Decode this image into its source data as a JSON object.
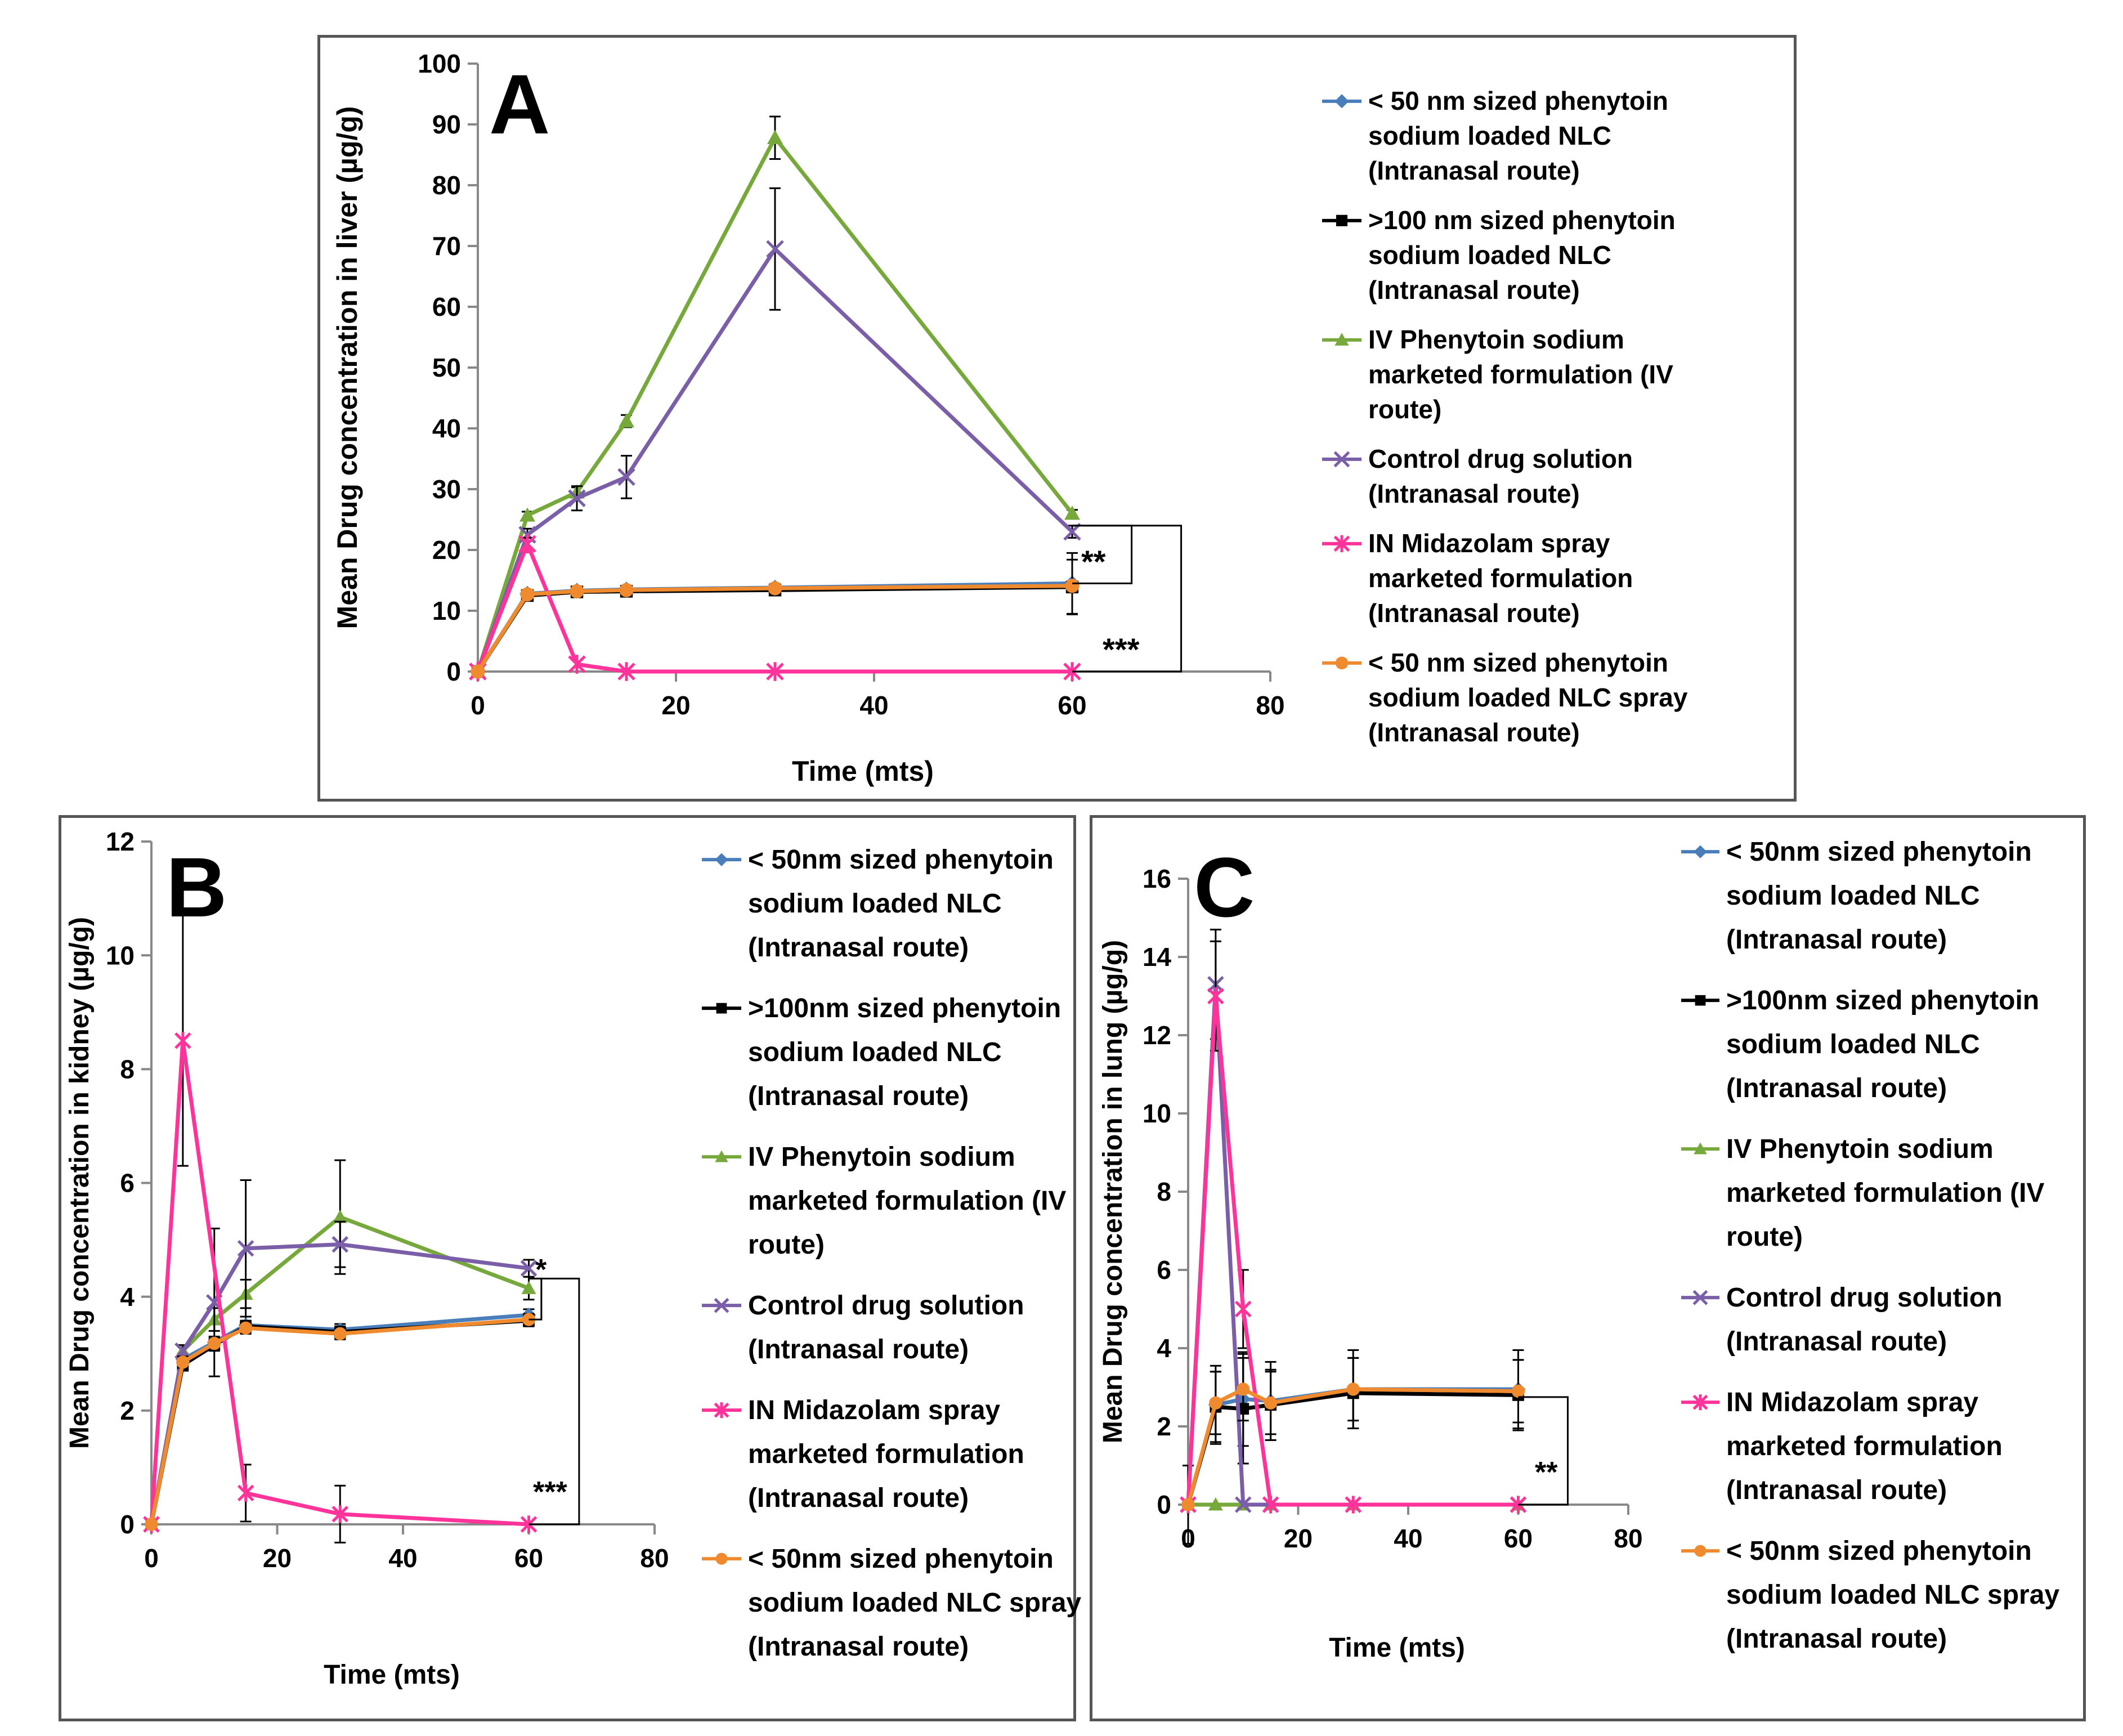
{
  "chart_data": [
    {
      "type": "line",
      "panel": "A",
      "title": "A",
      "xlabel": "Time (mts)",
      "ylabel": "Mean Drug concentration in liver  (µg/g)",
      "xlim": [
        0,
        80
      ],
      "ylim": [
        0,
        100
      ],
      "xticks": [
        0,
        20,
        40,
        60,
        80
      ],
      "yticks": [
        0,
        10,
        20,
        30,
        40,
        50,
        60,
        70,
        80,
        90,
        100
      ],
      "grid": false,
      "legend_position": "right",
      "series": [
        {
          "name": "< 50 nm sized phenytoin sodium loaded NLC (Intranasal route)",
          "legend_lines": [
            "< 50 nm sized phenytoin",
            "sodium loaded NLC",
            "(Intranasal route)"
          ],
          "color": "#4a7ebb",
          "marker": "diamond",
          "x": [
            0,
            5,
            10,
            15,
            30,
            60
          ],
          "y": [
            0,
            12.8,
            13.3,
            13.5,
            13.8,
            14.5
          ],
          "err": [
            0,
            0.6,
            0.6,
            0.6,
            0.6,
            5.0
          ]
        },
        {
          "name": ">100 nm sized phenytoin sodium loaded NLC (Intranasal route)",
          "legend_lines": [
            ">100 nm sized phenytoin",
            "sodium loaded NLC",
            "(Intranasal route)"
          ],
          "color": "#000000",
          "marker": "square",
          "x": [
            0,
            5,
            10,
            15,
            30,
            60
          ],
          "y": [
            0,
            12.5,
            13.1,
            13.2,
            13.4,
            13.9
          ],
          "err": [
            0,
            0.6,
            0.6,
            0.6,
            0.6,
            4.5
          ]
        },
        {
          "name": "IV Phenytoin sodium marketed formulation (IV route)",
          "legend_lines": [
            "IV Phenytoin sodium",
            "marketed formulation (IV",
            "route)"
          ],
          "color": "#77a83b",
          "marker": "triangle",
          "x": [
            0,
            5,
            10,
            15,
            30,
            60
          ],
          "y": [
            0,
            25.7,
            29.5,
            41.2,
            87.8,
            26
          ],
          "err": [
            0,
            0.6,
            0.8,
            1.0,
            3.5,
            0.6
          ]
        },
        {
          "name": "Control drug solution (Intranasal route)",
          "legend_lines": [
            "Control drug solution",
            "(Intranasal route)"
          ],
          "color": "#7a5fa8",
          "marker": "x",
          "x": [
            0,
            5,
            10,
            15,
            30,
            60
          ],
          "y": [
            0,
            22.5,
            28.5,
            32,
            69.5,
            23
          ],
          "err": [
            0,
            1.0,
            2.0,
            3.5,
            10.0,
            1.0
          ]
        },
        {
          "name": "IN Midazolam spray marketed formulation (Intranasal route)",
          "legend_lines": [
            "IN Midazolam spray",
            "marketed formulation",
            "(Intranasal route)"
          ],
          "color": "#ff3399",
          "marker": "star",
          "x": [
            0,
            5,
            10,
            15,
            30,
            60
          ],
          "y": [
            0,
            21,
            1.2,
            0,
            0,
            0
          ],
          "err": [
            0,
            1.0,
            0,
            0,
            0,
            0
          ]
        },
        {
          "name": "< 50 nm sized phenytoin sodium loaded NLC spray (Intranasal route)",
          "legend_lines": [
            "< 50 nm sized phenytoin",
            "sodium loaded NLC spray",
            "(Intranasal route)"
          ],
          "color": "#f08a2e",
          "marker": "circle",
          "x": [
            0,
            5,
            10,
            15,
            30,
            60
          ],
          "y": [
            0,
            12.7,
            13.2,
            13.4,
            13.7,
            14.1
          ],
          "err": [
            0,
            0.6,
            0.6,
            0.6,
            0.6,
            0.6
          ]
        }
      ],
      "annotations": [
        "**",
        "***"
      ]
    },
    {
      "type": "line",
      "panel": "B",
      "title": "B",
      "xlabel": "Time (mts)",
      "ylabel": "Mean Drug concentration in kidney  (µg/g)",
      "xlim": [
        0,
        80
      ],
      "ylim": [
        0,
        12
      ],
      "xticks": [
        0,
        20,
        40,
        60,
        80
      ],
      "yticks": [
        0,
        2,
        4,
        6,
        8,
        10,
        12
      ],
      "grid": false,
      "legend_position": "right",
      "series": [
        {
          "name": "< 50nm sized phenytoin sodium loaded NLC (Intranasal route)",
          "legend_lines": [
            "< 50nm sized phenytoin",
            "sodium loaded NLC",
            "(Intranasal route)"
          ],
          "color": "#4a7ebb",
          "marker": "diamond",
          "x": [
            0,
            5,
            10,
            15,
            30,
            60
          ],
          "y": [
            0,
            2.9,
            3.2,
            3.5,
            3.42,
            3.68
          ],
          "err": [
            0,
            0.1,
            0.1,
            0.15,
            0.1,
            0.1
          ]
        },
        {
          "name": ">100nm sized phenytoin sodium loaded NLC (Intranasal route)",
          "legend_lines": [
            ">100nm sized phenytoin",
            "sodium loaded NLC",
            "(Intranasal route)"
          ],
          "color": "#000000",
          "marker": "square",
          "x": [
            0,
            5,
            10,
            15,
            30,
            60
          ],
          "y": [
            0,
            2.8,
            3.15,
            3.48,
            3.38,
            3.58
          ],
          "err": [
            0,
            0.1,
            0.1,
            0.1,
            0.1,
            0.1
          ]
        },
        {
          "name": "IV Phenytoin sodium marketed formulation (IV route)",
          "legend_lines": [
            "IV Phenytoin sodium",
            "marketed formulation (IV",
            "route)"
          ],
          "color": "#77a83b",
          "marker": "triangle",
          "x": [
            0,
            5,
            10,
            15,
            30,
            60
          ],
          "y": [
            0,
            3.05,
            3.6,
            4.05,
            5.4,
            4.15
          ],
          "err": [
            0,
            0.1,
            0.2,
            0.25,
            1.0,
            0.2
          ]
        },
        {
          "name": "Control drug solution (Intranasal route)",
          "legend_lines": [
            "Control drug solution",
            "(Intranasal route)"
          ],
          "color": "#7a5fa8",
          "marker": "x",
          "x": [
            0,
            5,
            10,
            15,
            30,
            60
          ],
          "y": [
            0,
            3.05,
            3.9,
            4.85,
            4.92,
            4.5
          ],
          "err": [
            0,
            0.1,
            1.3,
            1.2,
            0.4,
            0.15
          ]
        },
        {
          "name": "IN Midazolam spray marketed formulation (Intranasal route)",
          "legend_lines": [
            "IN Midazolam spray",
            "marketed formulation",
            "(Intranasal route)"
          ],
          "color": "#ff3399",
          "marker": "star",
          "x": [
            0,
            5,
            15,
            30,
            60
          ],
          "y": [
            0,
            8.5,
            0.55,
            0.18,
            0
          ],
          "err": [
            0,
            2.2,
            0.5,
            0.5,
            0
          ]
        },
        {
          "name": "< 50nm sized phenytoin sodium loaded NLC spray (Intranasal route)",
          "legend_lines": [
            "< 50nm sized phenytoin",
            "sodium loaded NLC spray",
            "(Intranasal route)"
          ],
          "color": "#f08a2e",
          "marker": "circle",
          "x": [
            0,
            5,
            10,
            15,
            30,
            60
          ],
          "y": [
            0,
            2.85,
            3.18,
            3.45,
            3.35,
            3.6
          ],
          "err": [
            0,
            0.1,
            0.1,
            0.1,
            0.1,
            0.1
          ]
        }
      ],
      "annotations": [
        "*",
        "***"
      ]
    },
    {
      "type": "line",
      "panel": "C",
      "title": "C",
      "xlabel": "Time (mts)",
      "ylabel": "Mean Drug concentration in lung  (µg/g)",
      "xlim": [
        0,
        80
      ],
      "ylim": [
        0,
        16
      ],
      "xticks": [
        0,
        20,
        40,
        60,
        80
      ],
      "yticks": [
        0,
        2,
        4,
        6,
        8,
        10,
        12,
        14,
        16
      ],
      "grid": false,
      "legend_position": "right",
      "series": [
        {
          "name": "< 50nm sized phenytoin sodium loaded NLC (Intranasal route)",
          "legend_lines": [
            "< 50nm sized phenytoin",
            "sodium loaded NLC",
            "(Intranasal route)"
          ],
          "color": "#4a7ebb",
          "marker": "diamond",
          "x": [
            0,
            5,
            10,
            15,
            30,
            60
          ],
          "y": [
            0,
            2.55,
            2.7,
            2.65,
            2.95,
            2.95
          ],
          "err": [
            0,
            1.0,
            1.2,
            1.0,
            1.0,
            1.0
          ]
        },
        {
          "name": ">100nm sized phenytoin sodium loaded NLC (Intranasal route)",
          "legend_lines": [
            ">100nm sized phenytoin",
            "sodium loaded NLC",
            "(Intranasal route)"
          ],
          "color": "#000000",
          "marker": "square",
          "x": [
            0,
            5,
            10,
            15,
            30,
            60
          ],
          "y": [
            0,
            2.5,
            2.45,
            2.55,
            2.85,
            2.8
          ],
          "err": [
            0,
            0.9,
            1.4,
            0.9,
            0.9,
            0.9
          ]
        },
        {
          "name": "IV Phenytoin sodium marketed formulation (IV route)",
          "legend_lines": [
            "IV Phenytoin sodium",
            "marketed formulation (IV",
            "route)"
          ],
          "color": "#77a83b",
          "marker": "triangle",
          "x": [
            0,
            5,
            10,
            15,
            30,
            60
          ],
          "y": [
            0,
            0,
            0,
            0,
            0,
            0
          ],
          "err": [
            0,
            0,
            0,
            0,
            0,
            0
          ]
        },
        {
          "name": "Control drug solution (Intranasal route)",
          "legend_lines": [
            "Control drug solution",
            "(Intranasal route)"
          ],
          "color": "#7a5fa8",
          "marker": "x",
          "x": [
            0,
            5,
            10,
            15,
            30,
            60
          ],
          "y": [
            0,
            13.3,
            0,
            0,
            0,
            0
          ],
          "err": [
            0,
            1.4,
            0,
            0,
            0,
            0
          ]
        },
        {
          "name": "IN Midazolam spray marketed formulation (Intranasal route)",
          "legend_lines": [
            "IN Midazolam spray",
            "marketed formulation",
            "(Intranasal route)"
          ],
          "color": "#ff3399",
          "marker": "star",
          "x": [
            0,
            5,
            10,
            15,
            30,
            60
          ],
          "y": [
            0,
            13.0,
            5.0,
            0,
            0,
            0
          ],
          "err": [
            1.0,
            1.4,
            1.0,
            0,
            0,
            0
          ]
        },
        {
          "name": "< 50nm sized phenytoin sodium loaded NLC spray (Intranasal route)",
          "legend_lines": [
            "< 50nm sized phenytoin",
            "sodium loaded NLC spray",
            "(Intranasal route)"
          ],
          "color": "#f08a2e",
          "marker": "circle",
          "x": [
            0,
            5,
            10,
            15,
            30,
            60
          ],
          "y": [
            0,
            2.6,
            2.95,
            2.6,
            2.95,
            2.9
          ],
          "err": [
            0,
            0.8,
            0.8,
            0.8,
            0.8,
            0.8
          ]
        }
      ],
      "annotations": [
        "**"
      ]
    }
  ]
}
